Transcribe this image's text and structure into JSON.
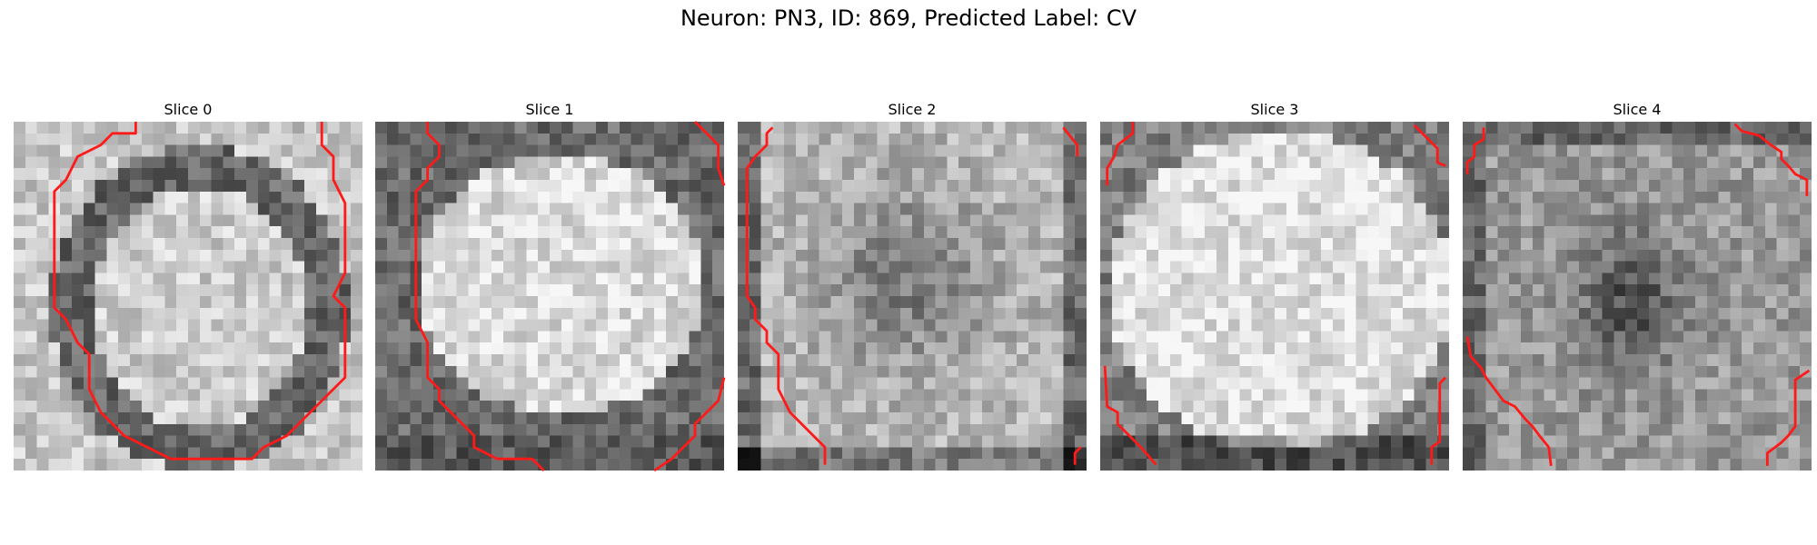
{
  "figure": {
    "title": "Neuron: PN3, ID: 869, Predicted Label: CV"
  },
  "slices": [
    {
      "title": "Slice 0"
    },
    {
      "title": "Slice 1"
    },
    {
      "title": "Slice 2"
    },
    {
      "title": "Slice 3"
    },
    {
      "title": "Slice 4"
    }
  ],
  "colors": {
    "contour": "#ff1a1a",
    "background": "#ffffff"
  }
}
